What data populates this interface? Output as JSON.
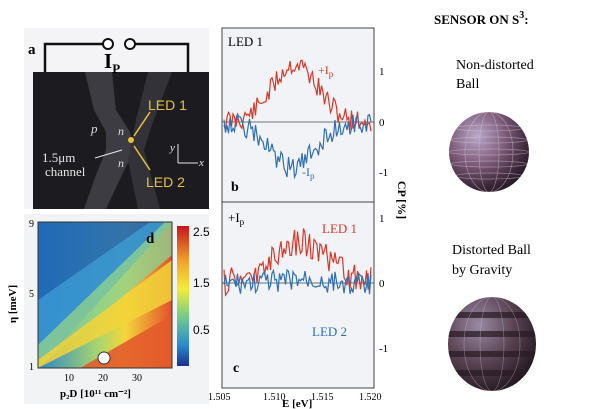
{
  "panel_a": {
    "letter": "a",
    "current_label": "I",
    "current_sub": "P",
    "p_label": "p",
    "n_label": "n",
    "led1": "LED 1",
    "led2": "LED 2",
    "channel_size": "1.5μm",
    "channel_word": "channel",
    "axis_y": "y",
    "axis_x": "x"
  },
  "panel_d": {
    "letter": "d",
    "ylabel": "η [meV]",
    "xlabel": "p₂D [10¹¹ cm⁻²]",
    "yticks": [
      "9",
      "5",
      "1"
    ],
    "xticks": [
      "10",
      "20",
      "30"
    ],
    "colorbar_ticks": [
      "2.5",
      "1.5",
      "0.5"
    ]
  },
  "panel_b": {
    "letter": "b",
    "title": "LED 1",
    "plus_label": "+I",
    "plus_sub": "p",
    "minus_label": "-I",
    "minus_sub": "p"
  },
  "panel_c": {
    "letter": "c",
    "plus_label": "+I",
    "plus_sub": "p",
    "led1": "LED 1",
    "led2": "LED 2"
  },
  "right_axis": {
    "label": "CP [%]",
    "ticks_b": [
      "1",
      "0",
      "-1"
    ],
    "ticks_c": [
      "1",
      "0",
      "-1"
    ]
  },
  "bottom_axis": {
    "label": "E [eV]",
    "ticks": [
      "1.505",
      "1.510",
      "1.515",
      "1.520"
    ]
  },
  "sensor": {
    "title_main": "SENSOR ON S",
    "title_sup": "3",
    "title_colon": ":",
    "caption1_line1": "Non-distorted",
    "caption1_line2": "Ball",
    "caption2_line1": "Distorted Ball",
    "caption2_line2": "by Gravity"
  },
  "colors": {
    "red_series": "#d8382a",
    "blue_series": "#2f6fb3",
    "sem_bg": "#1c1b1f",
    "led_label": "#e8c23a"
  }
}
